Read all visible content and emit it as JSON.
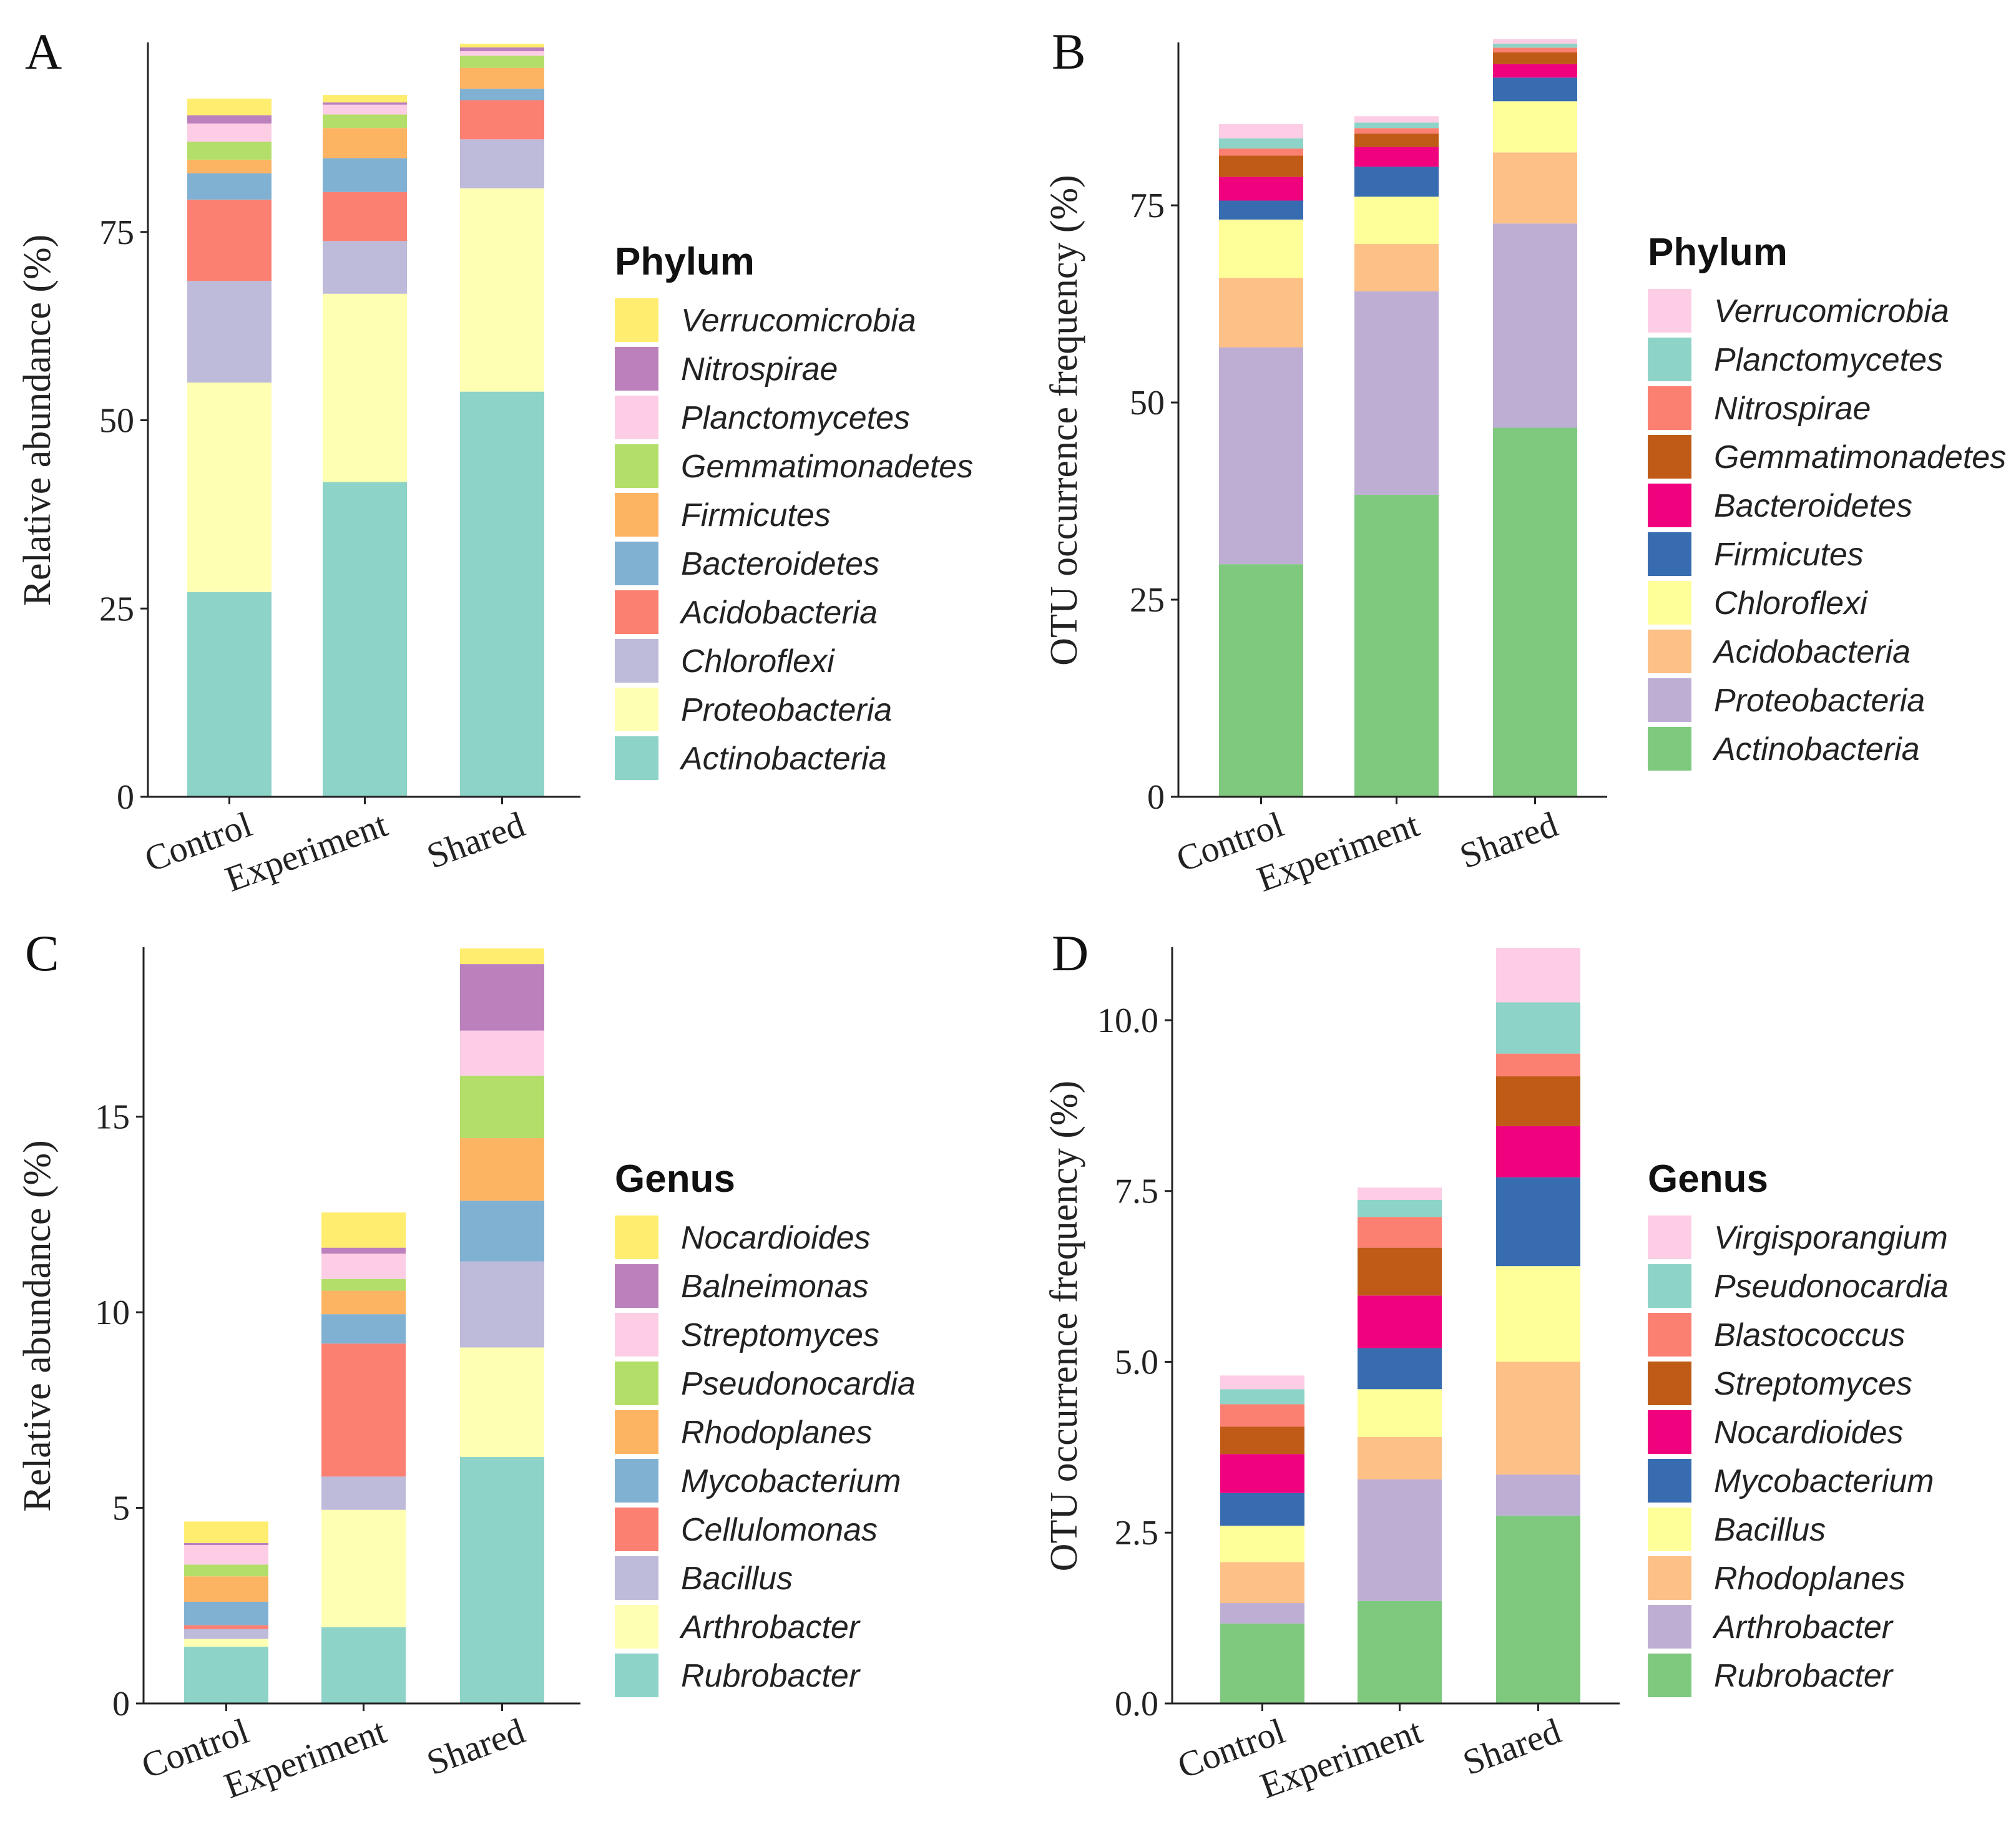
{
  "chart_data": [
    {
      "id": "A",
      "type": "bar",
      "stacked": true,
      "panel_label": "A",
      "ylabel": "Relative abundance (%)",
      "ylim": [
        0,
        100
      ],
      "yticks": [
        0,
        25,
        50,
        75
      ],
      "ytick_labels": [
        "0",
        "25",
        "50",
        "75"
      ],
      "categories": [
        "Control",
        "Experiment",
        "Shared"
      ],
      "legend_title": "Phylum",
      "series": [
        {
          "name": "Actinobacteria",
          "color": "#8dd3c7",
          "values": [
            27.2,
            41.8,
            53.8
          ]
        },
        {
          "name": "Proteobacteria",
          "color": "#ffffb3",
          "values": [
            27.8,
            25.0,
            27.0
          ]
        },
        {
          "name": "Chloroflexi",
          "color": "#bebada",
          "values": [
            13.5,
            7.0,
            6.5
          ]
        },
        {
          "name": "Acidobacteria",
          "color": "#fb8072",
          "values": [
            10.8,
            6.5,
            5.2
          ]
        },
        {
          "name": "Bacteroidetes",
          "color": "#80b1d3",
          "values": [
            3.5,
            4.5,
            1.5
          ]
        },
        {
          "name": "Firmicutes",
          "color": "#fdb462",
          "values": [
            1.8,
            4.0,
            2.8
          ]
        },
        {
          "name": "Gemmatimonadetes",
          "color": "#b3de69",
          "values": [
            2.4,
            1.8,
            1.6
          ]
        },
        {
          "name": "Planctomycetes",
          "color": "#fccde5",
          "values": [
            2.4,
            1.3,
            0.6
          ]
        },
        {
          "name": "Nitrospirae",
          "color": "#bc80bd",
          "values": [
            1.1,
            0.3,
            0.5
          ]
        },
        {
          "name": "Verrucomicrobia",
          "color": "#ffed6f",
          "values": [
            2.2,
            1.0,
            0.5
          ]
        }
      ]
    },
    {
      "id": "B",
      "type": "bar",
      "stacked": true,
      "panel_label": "B",
      "ylabel": "OTU occurrence frequency (%)",
      "ylim": [
        0,
        95.5
      ],
      "yticks": [
        0,
        25,
        50,
        75
      ],
      "ytick_labels": [
        "0",
        "25",
        "50",
        "75"
      ],
      "categories": [
        "Control",
        "Experiment",
        "Shared"
      ],
      "legend_title": "Phylum",
      "series": [
        {
          "name": "Actinobacteria",
          "color": "#7fc97f",
          "values": [
            29.5,
            38.3,
            46.8
          ]
        },
        {
          "name": "Proteobacteria",
          "color": "#beaed4",
          "values": [
            27.5,
            25.8,
            25.9
          ]
        },
        {
          "name": "Acidobacteria",
          "color": "#fdc086",
          "values": [
            8.8,
            6.0,
            9.0
          ]
        },
        {
          "name": "Chloroflexi",
          "color": "#ffff99",
          "values": [
            7.4,
            6.0,
            6.5
          ]
        },
        {
          "name": "Firmicutes",
          "color": "#386cb0",
          "values": [
            2.4,
            3.8,
            3.0
          ]
        },
        {
          "name": "Bacteroidetes",
          "color": "#f0027f",
          "values": [
            3.0,
            2.5,
            1.7
          ]
        },
        {
          "name": "Gemmatimonadetes",
          "color": "#bf5b17",
          "values": [
            2.7,
            1.7,
            1.5
          ]
        },
        {
          "name": "Nitrospirae",
          "color": "#fb8072",
          "values": [
            0.9,
            0.7,
            0.6
          ]
        },
        {
          "name": "Planctomycetes",
          "color": "#8dd3c7",
          "values": [
            1.3,
            0.7,
            0.5
          ]
        },
        {
          "name": "Verrucomicrobia",
          "color": "#fccde5",
          "values": [
            1.8,
            0.8,
            0.6
          ]
        }
      ]
    },
    {
      "id": "C",
      "type": "bar",
      "stacked": true,
      "panel_label": "C",
      "ylabel": "Relative abundance (%)",
      "ylim": [
        0,
        19.3
      ],
      "yticks": [
        0,
        5,
        10,
        15
      ],
      "ytick_labels": [
        "0",
        "5",
        "10",
        "15"
      ],
      "categories": [
        "Control",
        "Experiment",
        "Shared"
      ],
      "legend_title": "Genus",
      "series": [
        {
          "name": "Rubrobacter",
          "color": "#8dd3c7",
          "values": [
            1.45,
            1.95,
            6.3
          ]
        },
        {
          "name": "Arthrobacter",
          "color": "#ffffb3",
          "values": [
            0.2,
            3.0,
            2.8
          ]
        },
        {
          "name": "Bacillus",
          "color": "#bebada",
          "values": [
            0.25,
            0.85,
            2.2
          ]
        },
        {
          "name": "Cellulomonas",
          "color": "#fb8072",
          "values": [
            0.1,
            3.4,
            0.0
          ]
        },
        {
          "name": "Mycobacterium",
          "color": "#80b1d3",
          "values": [
            0.6,
            0.75,
            1.55
          ]
        },
        {
          "name": "Rhodoplanes",
          "color": "#fdb462",
          "values": [
            0.65,
            0.6,
            1.6
          ]
        },
        {
          "name": "Pseudonocardia",
          "color": "#b3de69",
          "values": [
            0.3,
            0.3,
            1.6
          ]
        },
        {
          "name": "Streptomyces",
          "color": "#fccde5",
          "values": [
            0.5,
            0.65,
            1.15
          ]
        },
        {
          "name": "Balneimonas",
          "color": "#bc80bd",
          "values": [
            0.05,
            0.15,
            1.7
          ]
        },
        {
          "name": "Nocardioides",
          "color": "#ffed6f",
          "values": [
            0.55,
            0.9,
            0.4
          ]
        }
      ]
    },
    {
      "id": "D",
      "type": "bar",
      "stacked": true,
      "panel_label": "D",
      "ylabel": "OTU occurrence frequency (%)",
      "ylim": [
        0,
        11.05
      ],
      "yticks": [
        0,
        2.5,
        5,
        7.5,
        10
      ],
      "ytick_labels": [
        "0.0",
        "2.5",
        "5.0",
        "7.5",
        "10.0"
      ],
      "categories": [
        "Control",
        "Experiment",
        "Shared"
      ],
      "legend_title": "Genus",
      "series": [
        {
          "name": "Rubrobacter",
          "color": "#7fc97f",
          "values": [
            1.17,
            1.5,
            2.75
          ]
        },
        {
          "name": "Arthrobacter",
          "color": "#beaed4",
          "values": [
            0.3,
            1.78,
            0.6
          ]
        },
        {
          "name": "Rhodoplanes",
          "color": "#fdc086",
          "values": [
            0.6,
            0.62,
            1.65
          ]
        },
        {
          "name": "Bacillus",
          "color": "#ffff99",
          "values": [
            0.53,
            0.7,
            1.4
          ]
        },
        {
          "name": "Mycobacterium",
          "color": "#386cb0",
          "values": [
            0.48,
            0.6,
            1.3
          ]
        },
        {
          "name": "Nocardioides",
          "color": "#f0027f",
          "values": [
            0.57,
            0.77,
            0.75
          ]
        },
        {
          "name": "Streptomyces",
          "color": "#bf5b17",
          "values": [
            0.4,
            0.7,
            0.73
          ]
        },
        {
          "name": "Blastococcus",
          "color": "#fb8072",
          "values": [
            0.33,
            0.45,
            0.33
          ]
        },
        {
          "name": "Pseudonocardia",
          "color": "#8dd3c7",
          "values": [
            0.22,
            0.25,
            0.75
          ]
        },
        {
          "name": "Virgisporangium",
          "color": "#fccde5",
          "values": [
            0.2,
            0.18,
            0.8
          ]
        }
      ]
    }
  ]
}
